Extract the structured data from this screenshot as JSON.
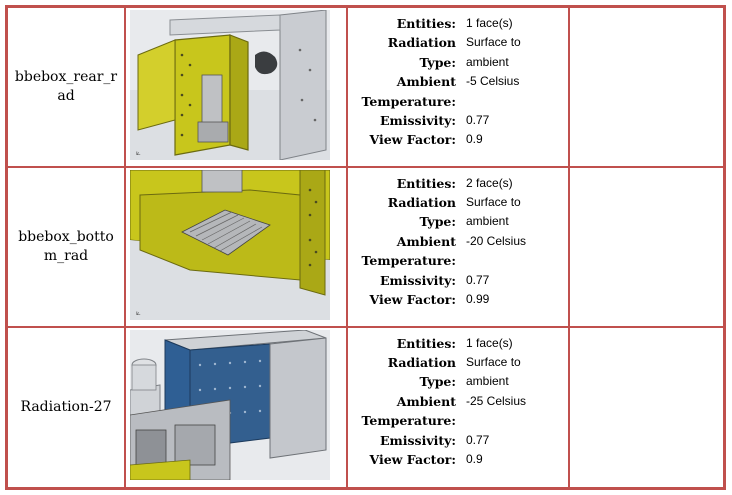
{
  "rows": [
    {
      "name": "bbebox_rear_rad",
      "props": [
        {
          "label": "Entities:",
          "value": "1 face(s)"
        },
        {
          "label": "Radiation",
          "value": "Surface to"
        },
        {
          "label": "Type:",
          "value": "ambient"
        },
        {
          "label": "Ambient",
          "value": "-5 Celsius"
        },
        {
          "label": "Temperature:",
          "value": ""
        },
        {
          "label": "Emissivity:",
          "value": "0.77"
        },
        {
          "label": "View Factor:",
          "value": "0.9"
        }
      ]
    },
    {
      "name": "bbebox_bottom_rad",
      "props": [
        {
          "label": "Entities:",
          "value": "2 face(s)"
        },
        {
          "label": "Radiation",
          "value": "Surface to"
        },
        {
          "label": "Type:",
          "value": "ambient"
        },
        {
          "label": "Ambient",
          "value": "-20 Celsius"
        },
        {
          "label": "Temperature:",
          "value": ""
        },
        {
          "label": "Emissivity:",
          "value": "0.77"
        },
        {
          "label": "View Factor:",
          "value": "0.99"
        }
      ]
    },
    {
      "name": "Radiation-27",
      "props": [
        {
          "label": "Entities:",
          "value": "1 face(s)"
        },
        {
          "label": "Radiation",
          "value": "Surface to"
        },
        {
          "label": "Type:",
          "value": "ambient"
        },
        {
          "label": "Ambient",
          "value": "-25 Celsius"
        },
        {
          "label": "Temperature:",
          "value": ""
        },
        {
          "label": "Emissivity:",
          "value": "0.77"
        },
        {
          "label": "View Factor:",
          "value": "0.9"
        }
      ]
    }
  ]
}
